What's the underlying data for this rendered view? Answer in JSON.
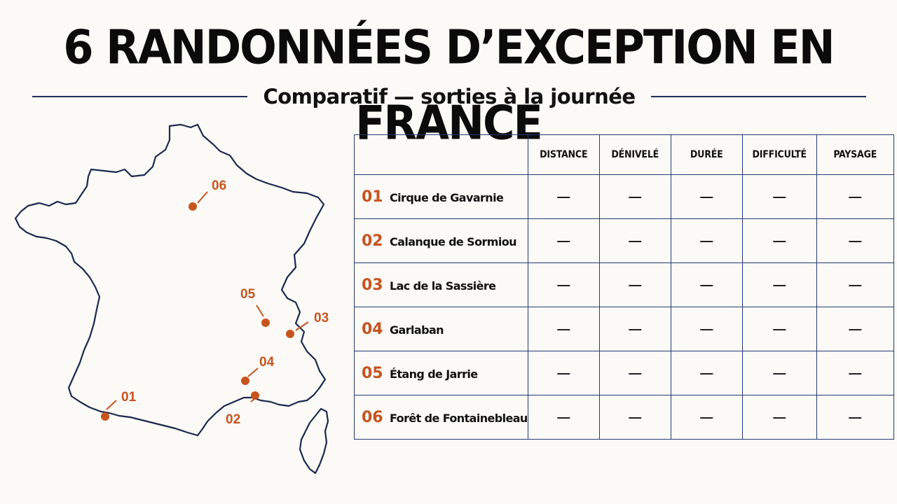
{
  "title": "6 RANDONNÉES D’EXCEPTION EN FRANCE",
  "subtitle": "Comparatif — sorties à la journée",
  "accent_color": "#c8531f",
  "line_color": "#1f2d5c",
  "columns": [
    "DISTANCE",
    "DÉNIVELÉ",
    "DURÉE",
    "DIFFICULTÉ",
    "PAYSAGE"
  ],
  "rows": [
    {
      "num": "01",
      "name": "Cirque de Gavarnie",
      "values": [
        "—",
        "—",
        "—",
        "—",
        "—"
      ]
    },
    {
      "num": "02",
      "name": "Calanque de Sormiou",
      "values": [
        "—",
        "—",
        "—",
        "—",
        "—"
      ]
    },
    {
      "num": "03",
      "name": "Lac de la Sassière",
      "values": [
        "—",
        "—",
        "—",
        "—",
        "—"
      ]
    },
    {
      "num": "04",
      "name": "Garlaban",
      "values": [
        "—",
        "—",
        "—",
        "—",
        "—"
      ]
    },
    {
      "num": "05",
      "name": "Étang de Jarrie",
      "values": [
        "—",
        "—",
        "—",
        "—",
        "—"
      ]
    },
    {
      "num": "06",
      "name": "Forêt de Fontainebleau",
      "values": [
        "—",
        "—",
        "—",
        "—",
        "—"
      ]
    }
  ],
  "map_pins": [
    "01",
    "02",
    "03",
    "04",
    "05",
    "06"
  ]
}
